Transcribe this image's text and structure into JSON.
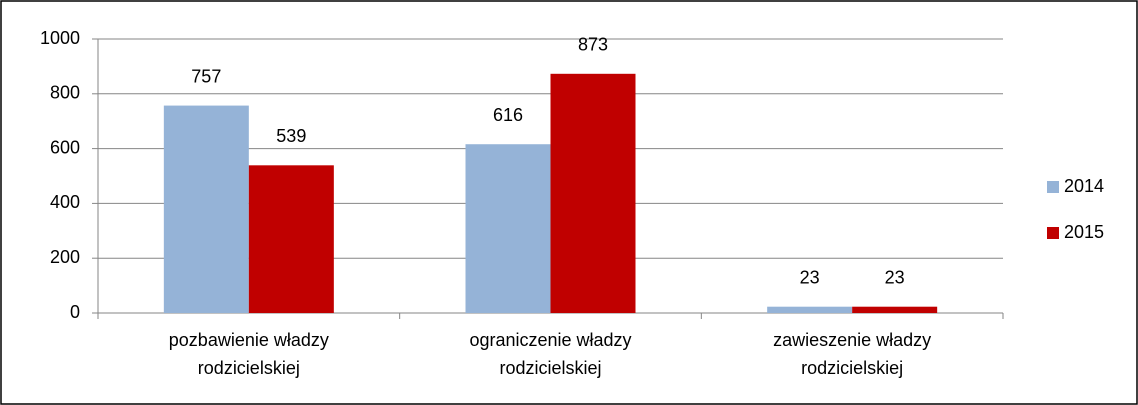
{
  "chart_data": {
    "type": "bar",
    "categories": [
      "pozbawienie władzy rodzicielskiej",
      "ograniczenie władzy rodzicielskiej",
      "zawieszenie władzy rodzicielskiej"
    ],
    "series": [
      {
        "name": "2014",
        "color": "#95b3d7",
        "values": [
          757,
          616,
          23
        ]
      },
      {
        "name": "2015",
        "color": "#c00000",
        "values": [
          539,
          873,
          23
        ]
      }
    ],
    "ylim": [
      0,
      1000
    ],
    "yticks": [
      0,
      200,
      400,
      600,
      800,
      1000
    ],
    "grid": true,
    "legend": "right"
  }
}
